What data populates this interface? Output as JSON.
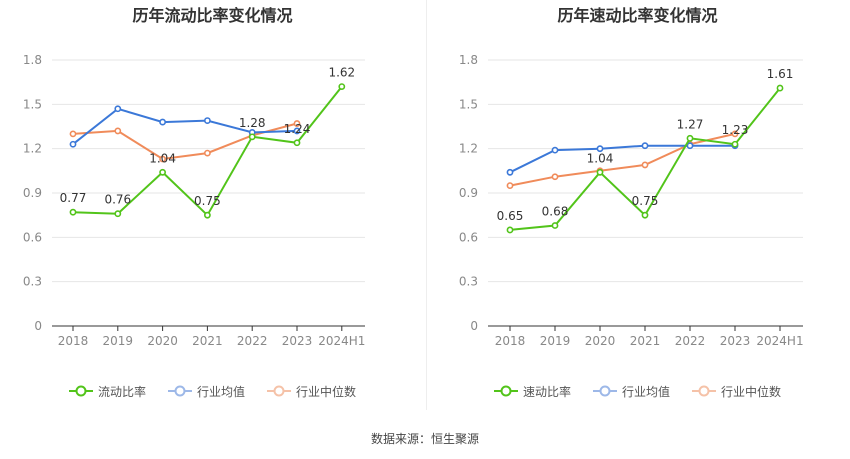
{
  "footer": {
    "source": "数据来源：恒生聚源"
  },
  "chart_data": [
    {
      "type": "line",
      "title": "历年流动比率变化情况",
      "categories": [
        "2018",
        "2019",
        "2020",
        "2021",
        "2022",
        "2023",
        "2024H1"
      ],
      "ylim": [
        0,
        1.8
      ],
      "yticks": [
        "0",
        "0.3",
        "0.6",
        "0.9",
        "1.2",
        "1.5",
        "1.8"
      ],
      "grid": true,
      "legend_position": "bottom",
      "series": [
        {
          "name": "流动比率",
          "color": "#52c41a",
          "values": [
            0.77,
            0.76,
            1.04,
            0.75,
            1.28,
            1.24,
            1.62
          ],
          "labels": [
            "0.77",
            "0.76",
            "1.04",
            "0.75",
            "1.28",
            "1.24",
            "1.62"
          ]
        },
        {
          "name": "行业均值",
          "color": "#3b78d8",
          "values": [
            1.23,
            1.47,
            1.38,
            1.39,
            1.31,
            1.32,
            null
          ]
        },
        {
          "name": "行业中位数",
          "color": "#f08b5a",
          "values": [
            1.3,
            1.32,
            1.13,
            1.17,
            1.29,
            1.37,
            null
          ]
        }
      ]
    },
    {
      "type": "line",
      "title": "历年速动比率变化情况",
      "categories": [
        "2018",
        "2019",
        "2020",
        "2021",
        "2022",
        "2023",
        "2024H1"
      ],
      "ylim": [
        0,
        1.8
      ],
      "yticks": [
        "0",
        "0.3",
        "0.6",
        "0.9",
        "1.2",
        "1.5",
        "1.8"
      ],
      "grid": true,
      "legend_position": "bottom",
      "series": [
        {
          "name": "速动比率",
          "color": "#52c41a",
          "values": [
            0.65,
            0.68,
            1.04,
            0.75,
            1.27,
            1.23,
            1.61
          ],
          "labels": [
            "0.65",
            "0.68",
            "1.04",
            "0.75",
            "1.27",
            "1.23",
            "1.61"
          ]
        },
        {
          "name": "行业均值",
          "color": "#3b78d8",
          "values": [
            1.04,
            1.19,
            1.2,
            1.22,
            1.22,
            1.22,
            null
          ]
        },
        {
          "name": "行业中位数",
          "color": "#f08b5a",
          "values": [
            0.95,
            1.01,
            1.05,
            1.09,
            1.23,
            1.3,
            null
          ]
        }
      ]
    }
  ]
}
